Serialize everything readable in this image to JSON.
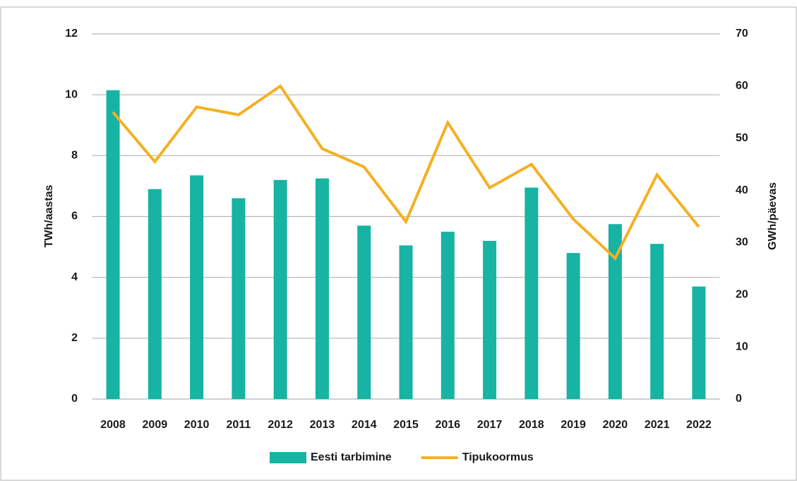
{
  "chart_data": {
    "type": "bar_line",
    "categories": [
      "2008",
      "2009",
      "2010",
      "2011",
      "2012",
      "2013",
      "2014",
      "2015",
      "2016",
      "2017",
      "2018",
      "2019",
      "2020",
      "2021",
      "2022"
    ],
    "series": [
      {
        "name": "Eesti tarbimine",
        "color": "#17b3a3",
        "type": "bar",
        "values": [
          10.15,
          6.9,
          7.35,
          6.6,
          7.2,
          7.25,
          5.7,
          5.05,
          5.5,
          5.2,
          6.95,
          4.8,
          5.75,
          5.1,
          3.7
        ]
      },
      {
        "name": "Tipukoormus",
        "color": "#f5b022",
        "type": "line",
        "axis": "y2",
        "values": [
          55,
          45.5,
          56,
          54.5,
          60,
          48,
          44.5,
          34,
          53,
          40.5,
          45,
          34.5,
          27,
          43,
          33
        ]
      }
    ],
    "ylabel": "TWh/aastas",
    "y2label": "GWh/päevas",
    "ylim": [
      0,
      12
    ],
    "yticks": [
      0,
      2,
      4,
      6,
      8,
      10,
      12
    ],
    "y2lim": [
      0,
      70
    ],
    "y2ticks": [
      0,
      10,
      20,
      30,
      40,
      50,
      60,
      70
    ],
    "grid": true,
    "legend": "bottom"
  }
}
